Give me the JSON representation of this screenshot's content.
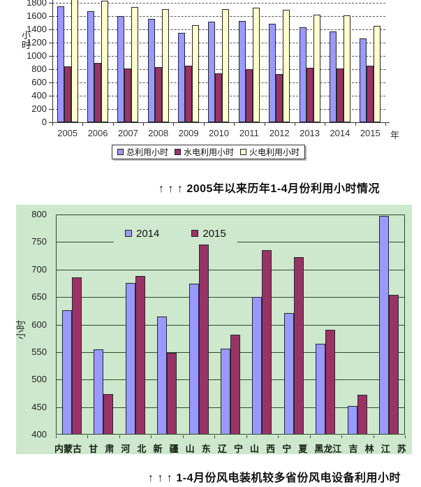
{
  "captions": {
    "top_chart_caption": "↑ ↑ ↑  2005年以来历年1-4月份利用小时情况",
    "bottom_chart_caption": "↑ ↑ ↑  1-4月份风电装机较多省份风电设备利用小时"
  },
  "colors": {
    "series_blue": "#9999fe",
    "series_maroon": "#993366",
    "series_yellow": "#ffffcc",
    "panel_green": "#cde8cd"
  },
  "chart_data": [
    {
      "id": "annual-utilization-hours",
      "type": "bar",
      "title": "",
      "ylabel": "小时",
      "xlabel": "年",
      "categories": [
        "2005",
        "2006",
        "2007",
        "2008",
        "2009",
        "2010",
        "2011",
        "2012",
        "2013",
        "2014",
        "2015"
      ],
      "series": [
        {
          "name": "总利用小时",
          "color": "#9999fe",
          "values": [
            1745,
            1672,
            1595,
            1560,
            1345,
            1515,
            1528,
            1482,
            1430,
            1365,
            1262
          ]
        },
        {
          "name": "水电利用小时",
          "color": "#993366",
          "values": [
            838,
            890,
            815,
            830,
            850,
            735,
            798,
            722,
            825,
            808,
            858
          ]
        },
        {
          "name": "火电利用小时",
          "color": "#ffffcc",
          "values": [
            1885,
            1832,
            1740,
            1710,
            1465,
            1705,
            1728,
            1700,
            1625,
            1610,
            1452
          ]
        }
      ],
      "yticks": [
        0,
        200,
        400,
        600,
        800,
        1000,
        1200,
        1400,
        1600,
        1800
      ],
      "ylim": [
        0,
        1850
      ],
      "grid": "dashed-horizontal",
      "legend_position": "bottom",
      "clipped_top": true
    },
    {
      "id": "wind-utilization-by-province",
      "type": "bar",
      "title": "",
      "ylabel": "小时",
      "xlabel": "",
      "categories": [
        "内蒙古",
        "甘肃",
        "河北",
        "新疆",
        "山东",
        "辽宁",
        "山西",
        "宁夏",
        "黑龙江",
        "吉林",
        "江苏"
      ],
      "axis_display_tokens": [
        "内蒙古",
        "甘",
        "肃",
        "河",
        "北",
        "新",
        "疆",
        "山",
        "东",
        "辽",
        "宁",
        "山",
        "西",
        "宁",
        "夏",
        "黑龙江",
        "吉",
        "林",
        "江",
        "苏"
      ],
      "series": [
        {
          "name": "2014",
          "color": "#9999fe",
          "values": [
            626,
            555,
            676,
            614,
            674,
            556,
            650,
            621,
            565,
            452,
            797
          ]
        },
        {
          "name": "2015",
          "color": "#993366",
          "values": [
            686,
            474,
            688,
            549,
            745,
            581,
            735,
            722,
            590,
            473,
            654
          ]
        }
      ],
      "yticks": [
        400,
        450,
        500,
        550,
        600,
        650,
        700,
        750,
        800
      ],
      "ylim": [
        400,
        800
      ],
      "grid": "solid-horizontal",
      "legend_position": "top-inside",
      "plot_background": "#cde8cd"
    }
  ]
}
